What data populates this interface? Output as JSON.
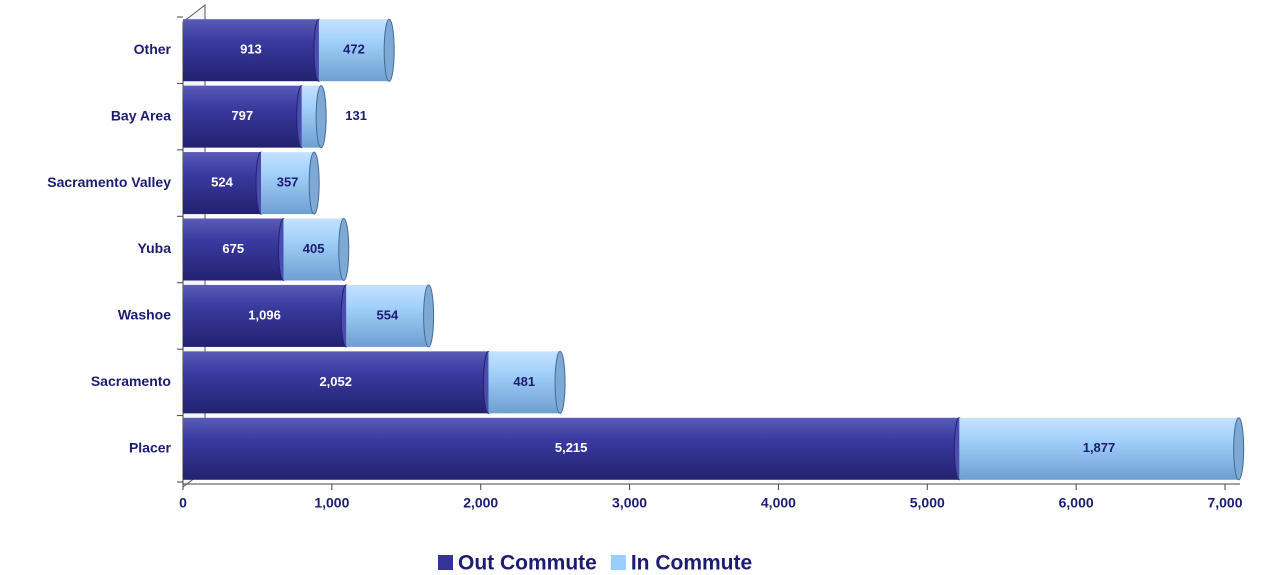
{
  "chart_data": {
    "type": "stacked-bar-horizontal",
    "categories": [
      "Other",
      "Bay Area",
      "Sacramento Valley",
      "Yuba",
      "Washoe",
      "Sacramento",
      "Placer"
    ],
    "series": [
      {
        "name": "Out Commute",
        "color": "#33339a",
        "values": [
          913,
          797,
          524,
          675,
          1096,
          2052,
          5215
        ],
        "value_labels": [
          "913",
          "797",
          "524",
          "675",
          "1,096",
          "2,052",
          "5,215"
        ]
      },
      {
        "name": "In Commute",
        "color": "#99ccff",
        "values": [
          472,
          131,
          357,
          405,
          554,
          481,
          1877
        ],
        "value_labels": [
          "472",
          "131",
          "357",
          "405",
          "554",
          "481",
          "1,877"
        ]
      }
    ],
    "xlim": [
      0,
      7000
    ],
    "xticks": [
      0,
      {
        "value": 1000,
        "label": "1,000"
      },
      {
        "value": 2000,
        "label": "2,000"
      },
      {
        "value": 3000,
        "label": "3,000"
      },
      {
        "value": 4000,
        "label": "4,000"
      },
      {
        "value": 5000,
        "label": "5,000"
      },
      {
        "value": 6000,
        "label": "6,000"
      },
      {
        "value": 7000,
        "label": "7,000"
      }
    ],
    "legend": "bottom"
  }
}
